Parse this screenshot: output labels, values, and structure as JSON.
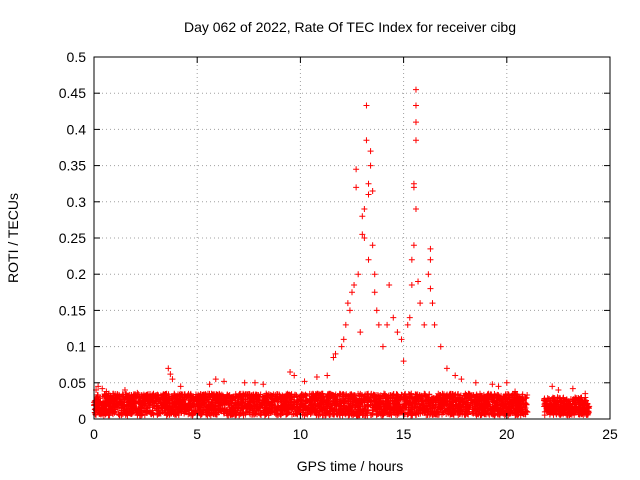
{
  "chart_data": {
    "type": "scatter",
    "title": "Day 062 of 2022, Rate Of TEC Index for receiver cibg",
    "xlabel": "GPS time / hours",
    "ylabel": "ROTI / TECUs",
    "xlim": [
      0,
      25
    ],
    "ylim": [
      0,
      0.5
    ],
    "grid": true,
    "marker": "+",
    "marker_color": "#ff0000",
    "x_ticks": [
      "0",
      "5",
      "10",
      "15",
      "20",
      "25"
    ],
    "y_ticks": [
      "0",
      "0.05",
      "0.1",
      "0.15",
      "0.2",
      "0.25",
      "0.3",
      "0.35",
      "0.4",
      "0.45",
      "0.5"
    ],
    "x_tick_values": [
      0,
      5,
      10,
      15,
      20,
      25
    ],
    "y_tick_values": [
      0,
      0.05,
      0.1,
      0.15,
      0.2,
      0.25,
      0.3,
      0.35,
      0.4,
      0.45,
      0.5
    ],
    "baseline_segments": [
      {
        "x_start": 0.0,
        "x_end": 21.0,
        "y_min": 0.005,
        "y_max": 0.035
      },
      {
        "x_start": 21.8,
        "x_end": 24.0,
        "y_min": 0.005,
        "y_max": 0.03
      }
    ],
    "series": [
      {
        "name": "ROTI",
        "points": [
          [
            0.1,
            0.04
          ],
          [
            0.2,
            0.045
          ],
          [
            0.4,
            0.042
          ],
          [
            0.6,
            0.038
          ],
          [
            1.5,
            0.04
          ],
          [
            2.1,
            0.036
          ],
          [
            3.6,
            0.07
          ],
          [
            3.7,
            0.062
          ],
          [
            3.8,
            0.055
          ],
          [
            4.2,
            0.045
          ],
          [
            5.6,
            0.048
          ],
          [
            5.9,
            0.055
          ],
          [
            6.3,
            0.052
          ],
          [
            7.3,
            0.05
          ],
          [
            7.8,
            0.05
          ],
          [
            8.2,
            0.048
          ],
          [
            9.5,
            0.065
          ],
          [
            9.7,
            0.06
          ],
          [
            10.2,
            0.052
          ],
          [
            10.8,
            0.058
          ],
          [
            11.3,
            0.06
          ],
          [
            11.6,
            0.085
          ],
          [
            11.7,
            0.09
          ],
          [
            12.0,
            0.1
          ],
          [
            12.1,
            0.11
          ],
          [
            12.2,
            0.13
          ],
          [
            12.3,
            0.16
          ],
          [
            12.4,
            0.15
          ],
          [
            12.5,
            0.175
          ],
          [
            12.6,
            0.185
          ],
          [
            12.7,
            0.32
          ],
          [
            12.7,
            0.345
          ],
          [
            12.8,
            0.2
          ],
          [
            12.9,
            0.12
          ],
          [
            13.0,
            0.28
          ],
          [
            13.0,
            0.255
          ],
          [
            13.1,
            0.29
          ],
          [
            13.1,
            0.25
          ],
          [
            13.2,
            0.433
          ],
          [
            13.2,
            0.385
          ],
          [
            13.3,
            0.31
          ],
          [
            13.3,
            0.325
          ],
          [
            13.3,
            0.22
          ],
          [
            13.4,
            0.35
          ],
          [
            13.4,
            0.37
          ],
          [
            13.5,
            0.315
          ],
          [
            13.5,
            0.24
          ],
          [
            13.6,
            0.2
          ],
          [
            13.6,
            0.175
          ],
          [
            13.7,
            0.15
          ],
          [
            13.8,
            0.13
          ],
          [
            14.0,
            0.1
          ],
          [
            14.2,
            0.13
          ],
          [
            14.3,
            0.185
          ],
          [
            14.5,
            0.14
          ],
          [
            14.7,
            0.12
          ],
          [
            14.9,
            0.11
          ],
          [
            15.0,
            0.08
          ],
          [
            15.2,
            0.13
          ],
          [
            15.3,
            0.14
          ],
          [
            15.4,
            0.185
          ],
          [
            15.4,
            0.22
          ],
          [
            15.5,
            0.24
          ],
          [
            15.5,
            0.32
          ],
          [
            15.5,
            0.325
          ],
          [
            15.6,
            0.385
          ],
          [
            15.6,
            0.41
          ],
          [
            15.6,
            0.433
          ],
          [
            15.6,
            0.455
          ],
          [
            15.6,
            0.29
          ],
          [
            15.7,
            0.19
          ],
          [
            15.8,
            0.16
          ],
          [
            16.0,
            0.13
          ],
          [
            16.2,
            0.2
          ],
          [
            16.3,
            0.235
          ],
          [
            16.3,
            0.22
          ],
          [
            16.3,
            0.18
          ],
          [
            16.4,
            0.16
          ],
          [
            16.5,
            0.13
          ],
          [
            16.8,
            0.1
          ],
          [
            17.1,
            0.07
          ],
          [
            17.5,
            0.06
          ],
          [
            17.8,
            0.055
          ],
          [
            18.5,
            0.05
          ],
          [
            19.3,
            0.048
          ],
          [
            19.6,
            0.045
          ],
          [
            20.0,
            0.05
          ],
          [
            20.4,
            0.038
          ],
          [
            22.2,
            0.045
          ],
          [
            22.5,
            0.04
          ],
          [
            23.2,
            0.042
          ],
          [
            23.8,
            0.035
          ]
        ]
      }
    ]
  }
}
